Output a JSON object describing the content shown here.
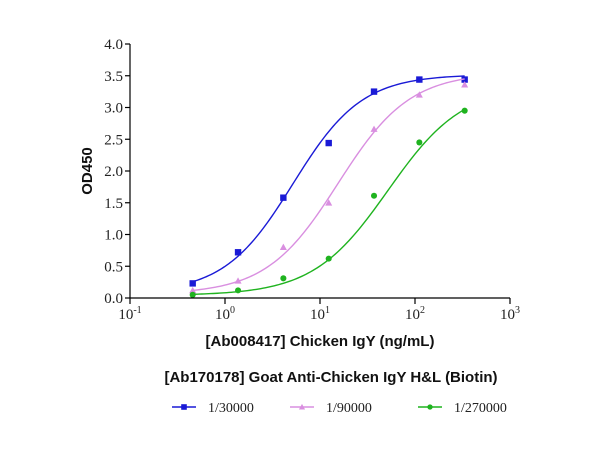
{
  "chart_data": {
    "type": "line",
    "title": "",
    "xlabel": "[Ab008417] Chicken IgY (ng/mL)",
    "ylabel": "OD450",
    "legend_title": "[Ab170178] Goat Anti-Chicken IgY H&L (Biotin)",
    "xscale": "log",
    "xlim": [
      0.1,
      1000
    ],
    "ylim": [
      0,
      4.0
    ],
    "x_ticks": [
      {
        "base": "10",
        "exp": "-1",
        "value": 0.1
      },
      {
        "base": "10",
        "exp": "0",
        "value": 1
      },
      {
        "base": "10",
        "exp": "1",
        "value": 10
      },
      {
        "base": "10",
        "exp": "2",
        "value": 100
      },
      {
        "base": "10",
        "exp": "3",
        "value": 1000
      }
    ],
    "y_ticks": [
      "0.0",
      "0.5",
      "1.0",
      "1.5",
      "2.0",
      "2.5",
      "3.0",
      "3.5",
      "4.0"
    ],
    "grid": false,
    "legend_position": "bottom",
    "x": [
      0.457,
      1.372,
      4.115,
      12.35,
      37.04,
      111.1,
      333.3
    ],
    "series": [
      {
        "name": "1/30000",
        "color": "#1a1ad6",
        "marker": "square",
        "values": [
          0.23,
          0.72,
          1.58,
          2.44,
          3.25,
          3.44,
          3.44
        ],
        "fit": {
          "bottom": 0.08,
          "top": 3.52,
          "ec50": 5.2,
          "hill": 1.2
        }
      },
      {
        "name": "1/90000",
        "color": "#d98fe0",
        "marker": "triangle",
        "values": [
          0.12,
          0.27,
          0.8,
          1.5,
          2.66,
          3.2,
          3.36
        ],
        "fit": {
          "bottom": 0.06,
          "top": 3.55,
          "ec50": 15.5,
          "hill": 1.15
        }
      },
      {
        "name": "1/270000",
        "color": "#1fb31f",
        "marker": "circle",
        "values": [
          0.05,
          0.12,
          0.31,
          0.62,
          1.61,
          2.45,
          2.95
        ],
        "fit": {
          "bottom": 0.04,
          "top": 3.35,
          "ec50": 52,
          "hill": 1.1
        }
      }
    ]
  }
}
